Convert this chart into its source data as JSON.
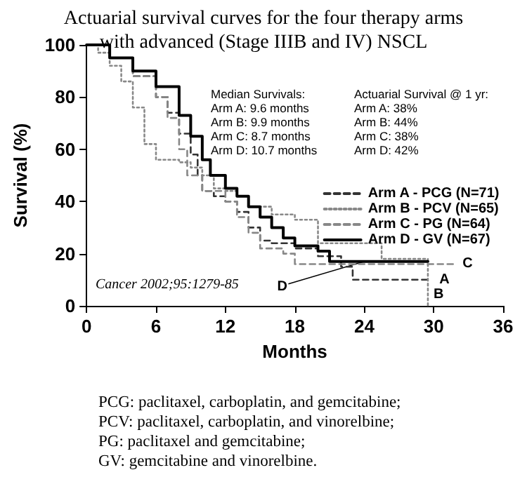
{
  "chart_data": {
    "type": "step",
    "title": "Actuarial survival curves for the four therapy arms\nwith advanced (Stage IIIB and IV) NSCL",
    "xlabel": "Months",
    "ylabel": "Survival (%)",
    "xlim": [
      0,
      36
    ],
    "xticks": [
      0,
      6,
      12,
      18,
      24,
      30,
      36
    ],
    "ylim": [
      0,
      100
    ],
    "yticks": [
      0,
      20,
      40,
      60,
      80,
      100
    ],
    "grid": false,
    "legend": "right",
    "marker": "none",
    "series": [
      {
        "name": "Arm A - PCG (N=71)",
        "color": "#333333",
        "line_style": "dashed",
        "x": [
          0,
          2,
          4,
          6,
          7,
          8,
          9,
          9.6,
          10,
          11,
          12,
          13,
          14,
          15,
          16,
          18,
          20,
          22,
          23,
          29.5
        ],
        "values": [
          100,
          95,
          88,
          80,
          74,
          66,
          58,
          50,
          44,
          42,
          40,
          36,
          30,
          25,
          24,
          22,
          19,
          15,
          10,
          10
        ]
      },
      {
        "name": "Arm B - PCV (N=65)",
        "color": "#888888",
        "line_style": "dotted",
        "x": [
          0,
          1,
          2,
          3,
          4,
          5,
          6,
          8,
          9,
          10,
          11,
          12,
          13,
          14,
          16,
          18,
          20,
          25.5,
          29.5,
          29.5
        ],
        "values": [
          100,
          97,
          92,
          86,
          76,
          62,
          56,
          55,
          53,
          50,
          45,
          44,
          42,
          38,
          35,
          33,
          24,
          18,
          18,
          0
        ]
      },
      {
        "name": "Arm C - PG (N=64)",
        "color": "#888888",
        "line_style": "dashed",
        "x": [
          0,
          2,
          4,
          6,
          7,
          8,
          8.7,
          10,
          12,
          13,
          14,
          15,
          17,
          18,
          32
        ],
        "values": [
          100,
          95,
          88,
          80,
          72,
          60,
          50,
          44,
          40,
          34,
          28,
          22,
          20,
          16,
          16
        ]
      },
      {
        "name": "Arm D - GV (N=67)",
        "color": "#000000",
        "line_style": "solid",
        "x": [
          0,
          2,
          4,
          6,
          8,
          9,
          10,
          10.7,
          12,
          13,
          14,
          15,
          16,
          17,
          18,
          20,
          21,
          29.5
        ],
        "values": [
          100,
          95,
          90,
          84,
          73,
          65,
          56,
          50,
          45,
          42,
          38,
          34,
          30,
          26,
          23,
          21,
          17,
          17
        ]
      }
    ],
    "annotations": [
      "Median Survivals:\nArm A: 9.6 months\nArm B: 9.9 months\nArm C: 8.7 months\nArm D: 10.7 months",
      "Actuarial Survival @ 1 yr:\nArm A: 38%\nArm B: 44%\nArm C: 38%\nArm D: 42%",
      "Cancer 2002;95:1279-85",
      "PCG: paclitaxel, carboplatin, and gemcitabine;\nPCV: paclitaxel, carboplatin, and vinorelbine;\nPG: paclitaxel and gemcitabine;\nGV: gemcitabine and vinorelbine.",
      {
        "text": "A",
        "x": 30,
        "y": 10
      },
      {
        "text": "B",
        "x": 29.5,
        "y": 0
      },
      {
        "text": "C",
        "x": 32,
        "y": 16
      },
      {
        "text": "D",
        "x": 24,
        "y": 17
      }
    ]
  }
}
